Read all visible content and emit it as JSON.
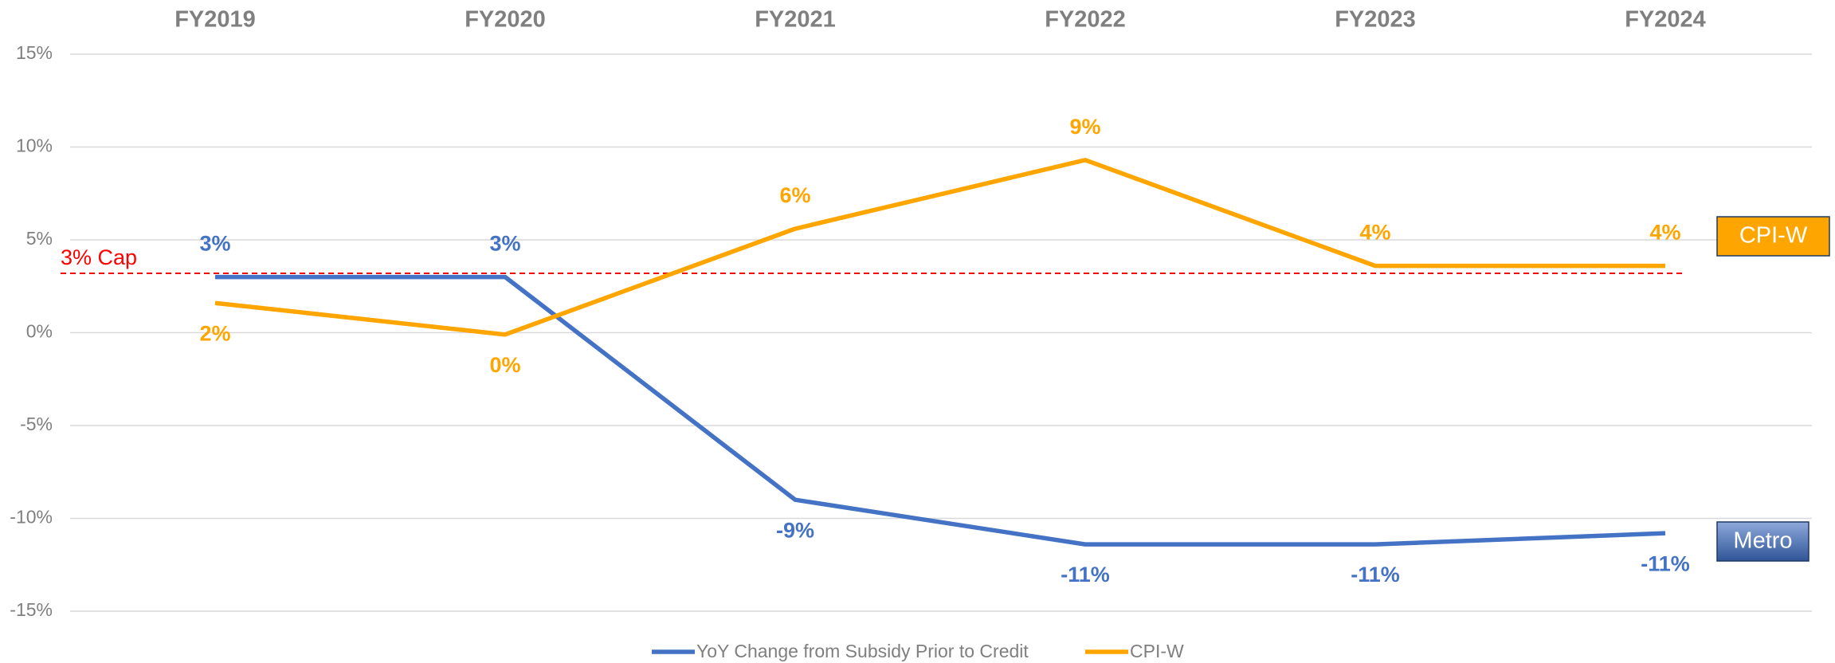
{
  "chart_data": {
    "type": "line",
    "categories": [
      "FY2019",
      "FY2020",
      "FY2021",
      "FY2022",
      "FY2023",
      "FY2024"
    ],
    "series": [
      {
        "name": "YoY Change from Subsidy Prior to Credit",
        "end_label": "Metro",
        "color": "#4472c4",
        "values": [
          3.0,
          3.0,
          -9.0,
          -11.4,
          -11.4,
          -10.8
        ],
        "value_labels": [
          "3%",
          "3%",
          "-9%",
          "-11%",
          "-11%",
          "-11%"
        ]
      },
      {
        "name": "CPI-W",
        "end_label": "CPI-W",
        "color": "#ffa500",
        "values": [
          1.6,
          -0.1,
          5.6,
          9.3,
          3.6,
          3.6
        ],
        "value_labels": [
          "2%",
          "0%",
          "6%",
          "9%",
          "4%",
          "4%"
        ]
      }
    ],
    "reference_line": {
      "label": "3% Cap",
      "value": 3.2,
      "color": "#ff0000"
    },
    "ylim": [
      -15,
      15
    ],
    "yticks": [
      {
        "value": -15,
        "label": "-15%"
      },
      {
        "value": -10,
        "label": "-10%"
      },
      {
        "value": -5,
        "label": "-5%"
      },
      {
        "value": 0,
        "label": "0%"
      },
      {
        "value": 5,
        "label": "5%"
      },
      {
        "value": 10,
        "label": "10%"
      },
      {
        "value": 15,
        "label": "15%"
      }
    ],
    "grid": true,
    "legend": "bottom"
  }
}
